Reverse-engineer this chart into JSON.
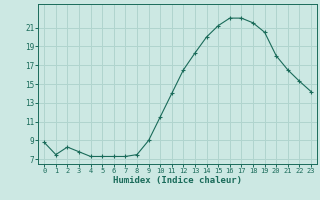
{
  "x": [
    0,
    1,
    2,
    3,
    4,
    5,
    6,
    7,
    8,
    9,
    10,
    11,
    12,
    13,
    14,
    15,
    16,
    17,
    18,
    19,
    20,
    21,
    22,
    23
  ],
  "y": [
    8.8,
    7.5,
    8.3,
    7.8,
    7.3,
    7.3,
    7.3,
    7.3,
    7.5,
    9.0,
    11.5,
    14.0,
    16.5,
    18.3,
    20.0,
    21.2,
    22.0,
    22.0,
    21.5,
    20.5,
    18.0,
    16.5,
    15.3,
    14.2
  ],
  "xlabel": "Humidex (Indice chaleur)",
  "ylim": [
    6.5,
    23.5
  ],
  "xlim": [
    -0.5,
    23.5
  ],
  "yticks": [
    7,
    9,
    11,
    13,
    15,
    17,
    19,
    21
  ],
  "xticks": [
    0,
    1,
    2,
    3,
    4,
    5,
    6,
    7,
    8,
    9,
    10,
    11,
    12,
    13,
    14,
    15,
    16,
    17,
    18,
    19,
    20,
    21,
    22,
    23
  ],
  "line_color": "#1a6b5a",
  "marker_color": "#1a6b5a",
  "bg_color": "#cce8e3",
  "grid_color": "#b0d4ce",
  "axis_color": "#1a6b5a",
  "font_color": "#1a6b5a",
  "font_family": "monospace"
}
